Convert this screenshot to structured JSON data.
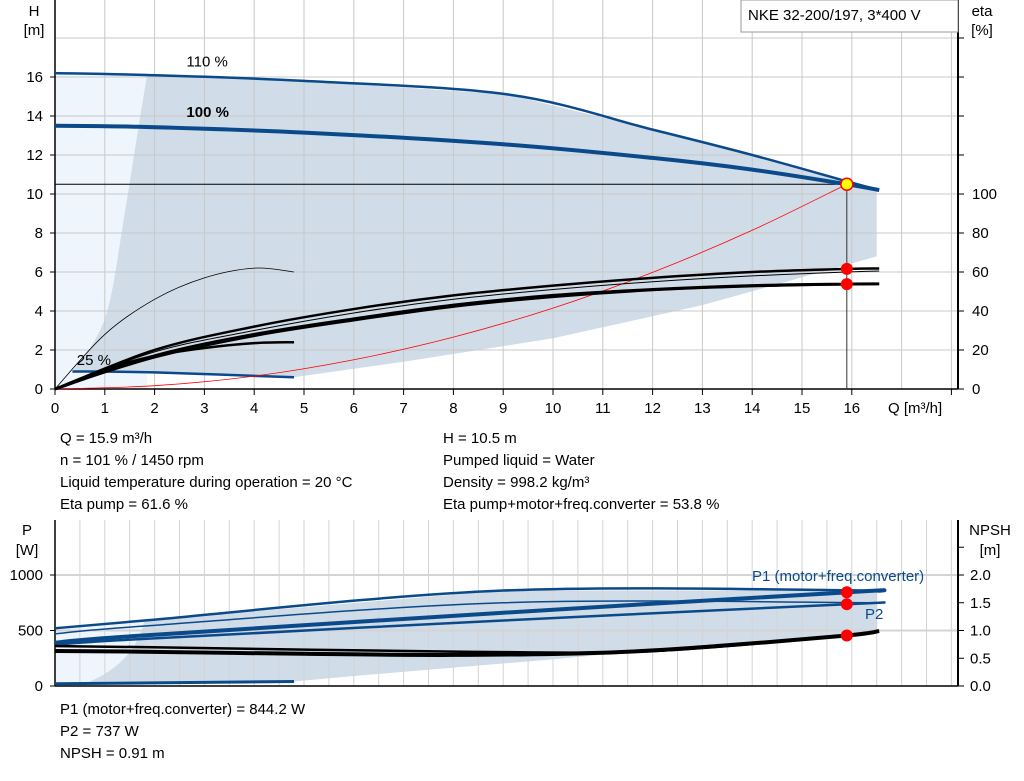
{
  "chart_data": [
    {
      "type": "line",
      "title": "NKE 32-200/197, 3*400 V",
      "xlabel": "Q [m³/h]",
      "ylabel": "H [m]",
      "ylabel_parts": [
        "H",
        "[m]"
      ],
      "y2label_parts": [
        "eta",
        "[%]"
      ],
      "xlim": [
        0,
        18
      ],
      "ylim": [
        0,
        18
      ],
      "y2lim": [
        0,
        100
      ],
      "grid": true,
      "x_ticks": [
        0,
        1,
        2,
        3,
        4,
        5,
        6,
        7,
        8,
        9,
        10,
        11,
        12,
        13,
        14,
        15,
        16
      ],
      "y_ticks": [
        0,
        2,
        4,
        6,
        8,
        10,
        12,
        14,
        16
      ],
      "y2_ticks": [
        0,
        20,
        40,
        60,
        80,
        100
      ],
      "curve_labels": [
        {
          "text": "110 %",
          "x": 3,
          "y": 16.8
        },
        {
          "text": "100 %",
          "x": 3,
          "y": 14.2
        },
        {
          "text": "25 %",
          "x": 1.2,
          "y": 1.5
        }
      ],
      "series": [
        {
          "key": "h110",
          "axis": "left",
          "color": "#0b4a8a",
          "x": [
            0,
            1.85,
            5,
            9.1,
            12,
            14,
            15.9,
            16.55
          ],
          "y": [
            16.2,
            16.1,
            15.8,
            15.1,
            13.3,
            12.0,
            10.65,
            10.2
          ]
        },
        {
          "key": "h100",
          "axis": "left",
          "color": "#0b4a8a",
          "x": [
            0,
            1.6,
            5,
            9,
            12,
            14,
            15.9,
            16.55
          ],
          "y": [
            13.5,
            13.45,
            13.15,
            12.55,
            11.85,
            11.25,
            10.5,
            10.2
          ]
        },
        {
          "key": "h25",
          "axis": "left",
          "color": "#0b4a8a",
          "x": [
            0.35,
            2,
            4.8
          ],
          "y": [
            0.9,
            0.85,
            0.6
          ]
        },
        {
          "key": "system",
          "axis": "left",
          "color": "#ff0000",
          "x": [
            0,
            2,
            4,
            6,
            8,
            10,
            12,
            14,
            15.9
          ],
          "y": [
            0,
            0.17,
            0.66,
            1.5,
            2.66,
            4.15,
            5.98,
            8.14,
            10.5
          ]
        },
        {
          "key": "eta_pump_low",
          "axis": "right",
          "color": "#000000",
          "x": [
            0,
            1,
            2,
            3,
            4,
            4.8
          ],
          "y": [
            0,
            28,
            46,
            57,
            62,
            60
          ]
        },
        {
          "key": "eta_total_low",
          "axis": "right",
          "color": "#000000",
          "x": [
            0,
            1,
            2,
            3,
            4,
            4.8
          ],
          "y": [
            0,
            10,
            17,
            21,
            23.5,
            24
          ]
        },
        {
          "key": "eta_pump",
          "axis": "right",
          "color": "#000000",
          "x": [
            0,
            2,
            4,
            6,
            8,
            10,
            12,
            14,
            15.9,
            16.55
          ],
          "y": [
            0,
            20,
            32,
            41,
            48,
            53,
            57,
            60,
            61.6,
            61.8
          ]
        },
        {
          "key": "eta_pump_b",
          "axis": "right",
          "color": "#000000",
          "x": [
            0,
            2,
            4,
            6,
            8,
            10,
            12,
            14,
            15.9,
            16.55
          ],
          "y": [
            0,
            19,
            30,
            39,
            46,
            51,
            55,
            58,
            60,
            60.5
          ]
        },
        {
          "key": "eta_total",
          "axis": "right",
          "color": "#000000",
          "x": [
            0,
            2,
            4,
            6,
            8,
            10,
            12,
            14,
            15.9,
            16.55
          ],
          "y": [
            0,
            17,
            28,
            36,
            43,
            48,
            51,
            53,
            53.8,
            53.9
          ]
        },
        {
          "key": "eta_total_b",
          "axis": "right",
          "color": "#000000",
          "x": [
            0,
            2,
            4,
            6,
            8,
            10,
            12,
            14,
            15.9,
            16.55
          ],
          "y": [
            0,
            16,
            27,
            35,
            42,
            47,
            50.5,
            52.5,
            53.5,
            53.7
          ]
        }
      ],
      "duty_point": {
        "Q": 15.9,
        "H": 10.5,
        "eta_pump": 61.6,
        "eta_total": 53.8
      }
    },
    {
      "type": "line",
      "ylabel_parts": [
        "P",
        "[W]"
      ],
      "y2label_parts": [
        "NPSH",
        "[m]"
      ],
      "xlim": [
        0,
        18
      ],
      "ylim": [
        0,
        1500
      ],
      "y2lim": [
        0,
        3
      ],
      "grid": true,
      "y_ticks": [
        0,
        500,
        1000
      ],
      "y2_ticks": [
        "0.0",
        "0.5",
        "1.0",
        "1.5",
        "2.0"
      ],
      "curve_labels": [
        {
          "text": "P1 (motor+freq.converter)",
          "x": 14,
          "y": 980
        },
        {
          "text": "P2",
          "x": 16.3,
          "y": 660
        }
      ],
      "series": [
        {
          "key": "p1_110",
          "axis": "left",
          "color": "#0b4a8a",
          "x": [
            0,
            1.8,
            9,
            16.55
          ],
          "y": [
            520,
            590,
            860,
            860
          ]
        },
        {
          "key": "p1_100",
          "axis": "left",
          "color": "#0b4a8a",
          "x": [
            0,
            1.6,
            9,
            15.9,
            16.55
          ],
          "y": [
            390,
            450,
            660,
            844,
            858
          ]
        },
        {
          "key": "p2_110",
          "axis": "left",
          "color": "#0b4a8a",
          "x": [
            0,
            1.8,
            9,
            16.55
          ],
          "y": [
            470,
            540,
            750,
            750
          ]
        },
        {
          "key": "p2_100",
          "axis": "left",
          "color": "#0b4a8a",
          "x": [
            0,
            1.6,
            9,
            15.9,
            16.55
          ],
          "y": [
            370,
            420,
            590,
            737,
            750
          ]
        },
        {
          "key": "p_25",
          "axis": "left",
          "color": "#0b4a8a",
          "x": [
            0,
            4.8
          ],
          "y": [
            20,
            40
          ]
        },
        {
          "key": "npsh_110",
          "axis": "right",
          "color": "#000000",
          "x": [
            0,
            1.8,
            8,
            12,
            15.9
          ],
          "y": [
            0.72,
            0.7,
            0.62,
            0.63,
            0.91
          ]
        },
        {
          "key": "npsh",
          "axis": "right",
          "color": "#000000",
          "x": [
            0,
            1.6,
            5,
            8,
            11,
            13,
            15.9,
            16.55
          ],
          "y": [
            0.63,
            0.62,
            0.58,
            0.56,
            0.6,
            0.7,
            0.91,
            0.99
          ]
        }
      ],
      "duty_point": {
        "Q": 15.9,
        "P1": 844.2,
        "P2": 737,
        "NPSH": 0.91
      }
    }
  ],
  "colors": {
    "curve": "#0b4a8a",
    "area": "#d0dce8",
    "area_light": "#eef5fc",
    "marker": "#ff0000",
    "duty": "#ffff00"
  },
  "info_top_left": [
    "Q = 15.9 m³/h",
    "n = 101 % / 1450 rpm",
    "Liquid temperature during operation = 20 °C",
    "Eta pump = 61.6 %"
  ],
  "info_top_right": [
    "H = 10.5 m",
    "Pumped liquid = Water",
    "Density = 998.2 kg/m³",
    "Eta pump+motor+freq.converter = 53.8 %"
  ],
  "info_bottom": [
    "P1 (motor+freq.converter) = 844.2 W",
    "P2 = 737 W",
    "NPSH = 0.91 m"
  ]
}
